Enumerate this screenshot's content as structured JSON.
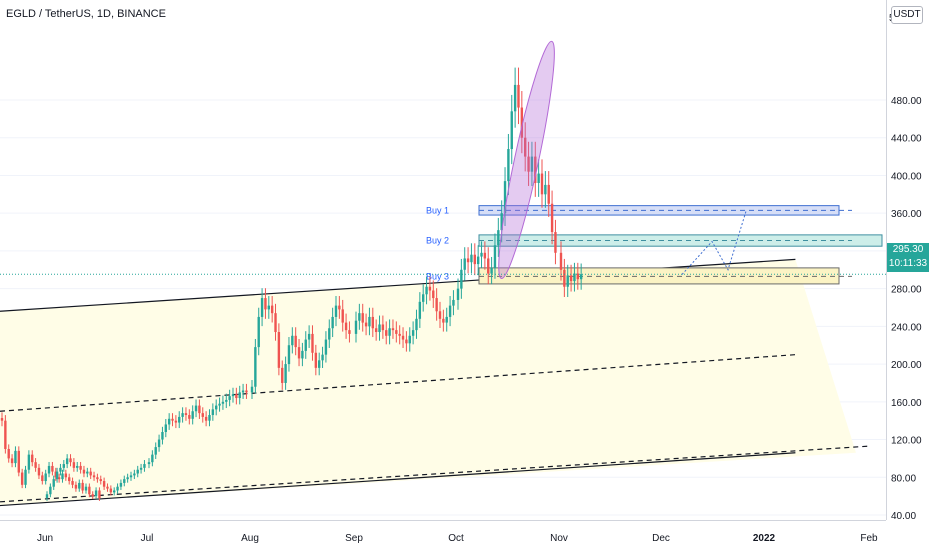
{
  "header": {
    "title": "EGLD / TetherUS, 1D, BINANCE"
  },
  "price_axis": {
    "currency": "USDT",
    "top_clipped_label": "5",
    "last_price": "295.30",
    "countdown": "10:11:33"
  },
  "colors": {
    "up": "#26a69a",
    "down": "#ef5350",
    "zone_fill": "#fffde7",
    "buy1": "#3f6fd1",
    "buy2": "#26a69a",
    "buy3": "#d4c34a",
    "ellipse": "#b36ad6",
    "label_blue": "#2962ff"
  },
  "chart_data": {
    "type": "candlestick",
    "title": "EGLD / TetherUS, 1D, BINANCE",
    "ylim": [
      35,
      525
    ],
    "y_ticks": [
      40,
      80,
      120,
      160,
      200,
      240,
      280,
      320,
      360,
      400,
      440,
      480
    ],
    "y_tick_labels": [
      "40.00",
      "80.00",
      "120.00",
      "160.00",
      "200.00",
      "240.00",
      "280.00",
      "320.00",
      "360.00",
      "400.00",
      "440.00",
      "480.00"
    ],
    "x_ticks": [
      "Jun",
      "Jul",
      "Aug",
      "Sep",
      "Oct",
      "Nov",
      "Dec",
      "2022",
      "Feb"
    ],
    "last_price": 295.3,
    "series": [
      {
        "segment": "Jun",
        "values": [
          140,
          110,
          100,
          95,
          108,
          85,
          72,
          88,
          104,
          96,
          90,
          82,
          76,
          84,
          92,
          86,
          80,
          78,
          84,
          80,
          76,
          72,
          68,
          74,
          66,
          70,
          62,
          60,
          66,
          58
        ]
      },
      {
        "segment": "Jul",
        "values": [
          62,
          70,
          78,
          86,
          90,
          94,
          100,
          96,
          90,
          92,
          88,
          84,
          86,
          82,
          80,
          78,
          76,
          70,
          68,
          64,
          66,
          70,
          74,
          78,
          80,
          82,
          84,
          88,
          90,
          94
        ]
      },
      {
        "segment": "Aug",
        "values": [
          96,
          104,
          112,
          120,
          128,
          136,
          142,
          140,
          138,
          144,
          148,
          146,
          142,
          150,
          156,
          148,
          144,
          140,
          146,
          152,
          156,
          158,
          160,
          162,
          166,
          168,
          164,
          170,
          172,
          170
        ]
      },
      {
        "segment": "Sep",
        "values": [
          176,
          218,
          250,
          270,
          258,
          262,
          254,
          234,
          196,
          180,
          200,
          220,
          230,
          218,
          206,
          214,
          226,
          232,
          212,
          196,
          204,
          210,
          226,
          238,
          250,
          262,
          258,
          244,
          236,
          232
        ]
      },
      {
        "segment": "Oct",
        "values": [
          246,
          254,
          244,
          240,
          250,
          238,
          234,
          242,
          236,
          230,
          238,
          236,
          232,
          230,
          226,
          222,
          230,
          236,
          248,
          266,
          274,
          282,
          278,
          270,
          256,
          248,
          244,
          250,
          262,
          268
        ]
      },
      {
        "segment": "Nov",
        "values": [
          280,
          300,
          312,
          308,
          316,
          306,
          314,
          318,
          312,
          296,
          302,
          326,
          342,
          360,
          394,
          428,
          468,
          496,
          472,
          440,
          420,
          404,
          420,
          392,
          402,
          380,
          390,
          370,
          340,
          318
        ]
      },
      {
        "segment": "Dec",
        "values": [
          300,
          282,
          294,
          288,
          296,
          290,
          295.3
        ]
      }
    ],
    "annotations": {
      "ellipse": {
        "label": "",
        "x_range": [
          "Nov 18",
          "Nov 26"
        ],
        "y_range": [
          288,
          545
        ]
      },
      "buy_zones": [
        {
          "label": "Buy 1",
          "top": 368,
          "bottom": 358,
          "mid": 363
        },
        {
          "label": "Buy 2",
          "top": 337,
          "bottom": 325,
          "mid": 331
        },
        {
          "label": "Buy 3",
          "top": 302,
          "bottom": 285,
          "mid": 293
        }
      ],
      "channel_lines": [
        {
          "style": "solid",
          "from": [
            "Jun 1",
            256
          ],
          "to": [
            "Jan 10",
            311
          ]
        },
        {
          "style": "dashed",
          "from": [
            "Jun 1",
            150
          ],
          "to": [
            "Jan 10",
            210
          ]
        },
        {
          "style": "dashed",
          "from": [
            "Jun 1",
            54
          ],
          "to": [
            "Feb 1",
            113
          ]
        },
        {
          "style": "solid",
          "from": [
            "Jun 1",
            50
          ],
          "to": [
            "Jan 10",
            106
          ]
        }
      ]
    }
  }
}
